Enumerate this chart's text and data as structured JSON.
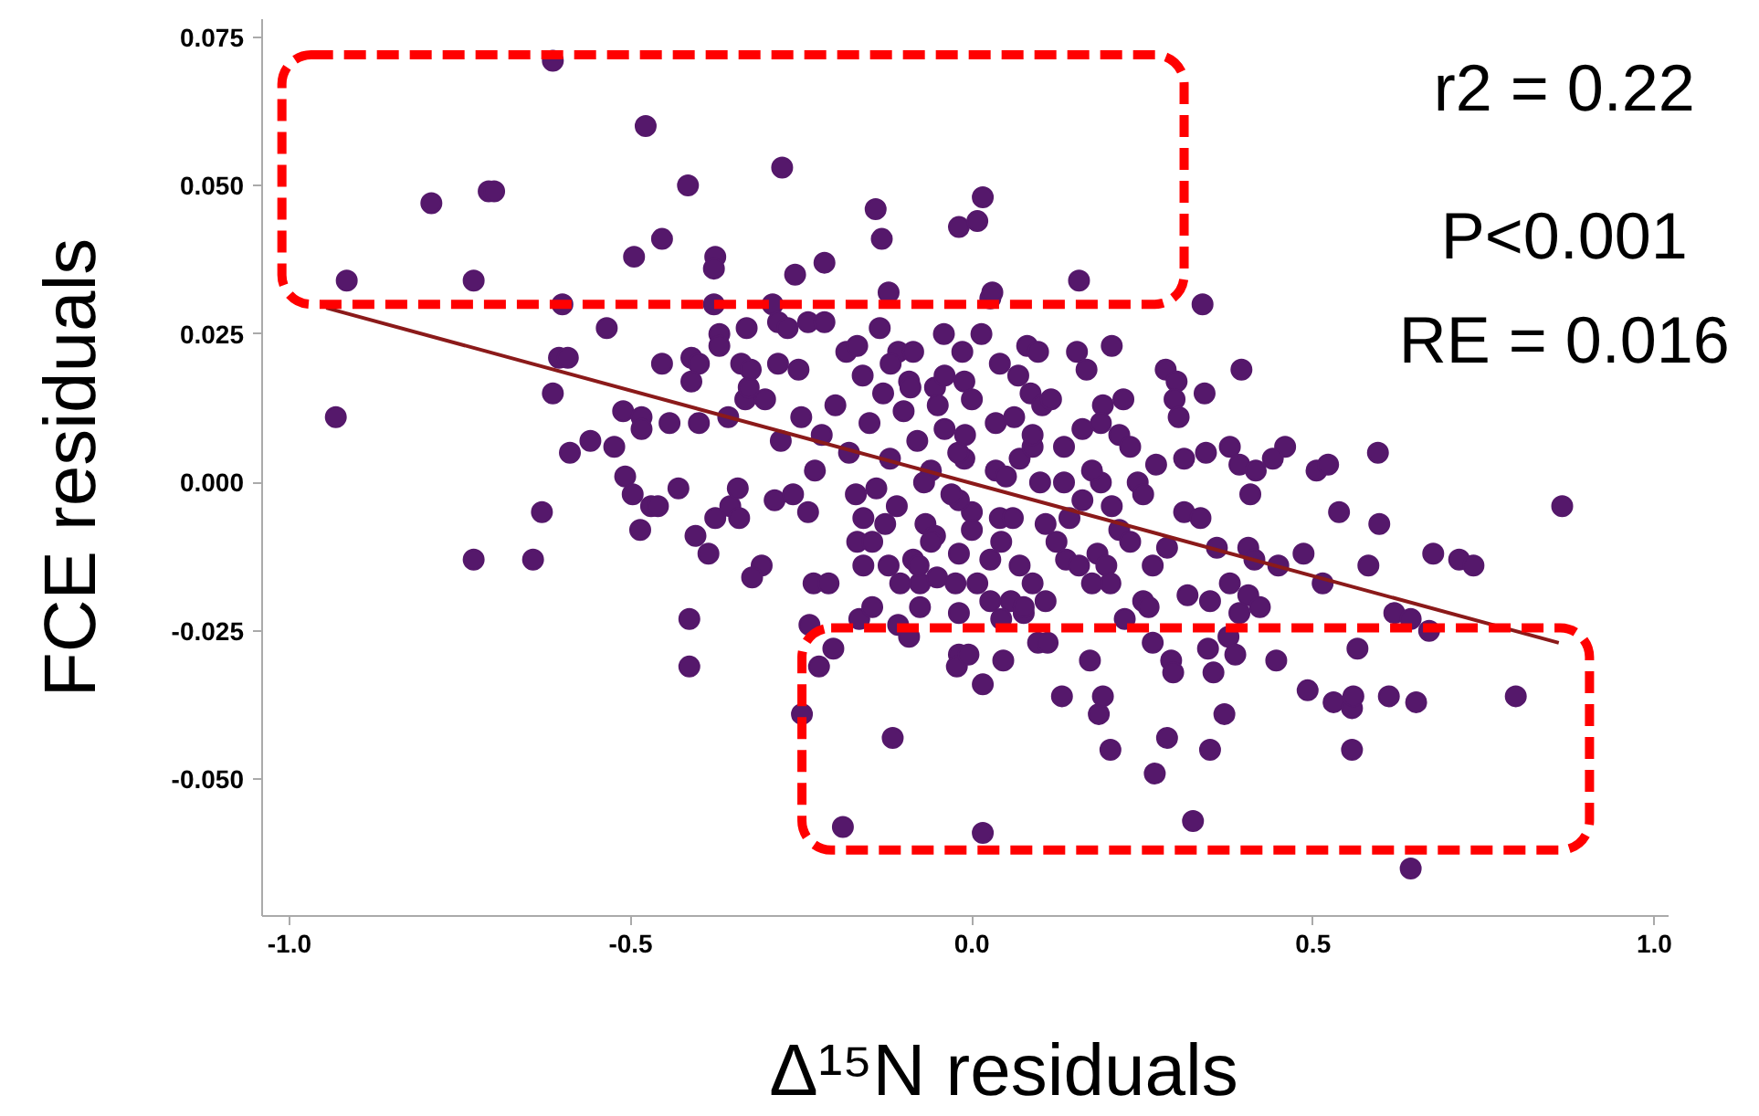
{
  "chart_data": {
    "type": "scatter",
    "xlabel": "Δ¹⁵N residuals",
    "ylabel": "FCE residuals",
    "annotations": [
      "r2 = 0.22",
      "P<0.001",
      "RE = 0.016"
    ],
    "xlim": [
      -1.04,
      1.02
    ],
    "ylim": [
      -0.073,
      0.078
    ],
    "xticks": [
      {
        "value": -1.0,
        "label": "-1.0"
      },
      {
        "value": -0.5,
        "label": "-0.5"
      },
      {
        "value": 0.0,
        "label": "0.0"
      },
      {
        "value": 0.5,
        "label": "0.5"
      },
      {
        "value": 1.0,
        "label": "1.0"
      }
    ],
    "yticks": [
      {
        "value": -0.05,
        "label": "-0.050"
      },
      {
        "value": -0.025,
        "label": "-0.025"
      },
      {
        "value": 0.0,
        "label": "0.000"
      },
      {
        "value": 0.025,
        "label": "0.025"
      },
      {
        "value": 0.05,
        "label": "0.050"
      },
      {
        "value": 0.075,
        "label": "0.075"
      }
    ],
    "grid": false,
    "series": [
      {
        "type": "scatter",
        "marker": "circle",
        "color": "#55186b",
        "x": [
          -0.614,
          -0.478,
          -0.792,
          -0.708,
          -0.7,
          -0.416,
          -0.278,
          -0.141,
          0.016,
          -0.019,
          0.008,
          -0.132,
          -0.454,
          -0.495,
          -0.376,
          -0.378,
          -0.259,
          -0.216,
          -0.916,
          -0.73,
          -0.6,
          -0.378,
          -0.122,
          0.027,
          -0.535,
          -0.33,
          -0.37,
          -0.37,
          -0.135,
          -0.292,
          -0.605,
          -0.592,
          -0.454,
          -0.411,
          -0.4,
          -0.411,
          -0.614,
          -0.511,
          -0.484,
          -0.484,
          -0.443,
          -0.4,
          -0.357,
          -0.932,
          -0.559,
          -0.589,
          -0.524,
          -0.303,
          -0.332,
          -0.327,
          -0.338,
          -0.324,
          -0.284,
          -0.254,
          -0.284,
          -0.27,
          -0.24,
          -0.216,
          -0.184,
          -0.168,
          -0.108,
          -0.086,
          -0.041,
          -0.014,
          0.014,
          -0.119,
          -0.092,
          -0.054,
          -0.011,
          0.041,
          0.081,
          -0.508,
          -0.497,
          -0.43,
          -0.47,
          -0.46,
          -0.63,
          -0.486,
          -0.405,
          -0.376,
          -0.386,
          -0.354,
          -0.341,
          -0.343,
          -0.289,
          -0.262,
          -0.24,
          -0.73,
          -0.643,
          -0.308,
          -0.322,
          -0.232,
          -0.21,
          -0.414,
          -0.414,
          -0.238,
          -0.203,
          -0.224,
          -0.249,
          -0.116,
          -0.189,
          0.016,
          -0.168,
          -0.159,
          -0.146,
          -0.122,
          -0.159,
          -0.127,
          -0.105,
          -0.076,
          -0.051,
          -0.024,
          0.008,
          -0.165,
          -0.146,
          -0.108,
          -0.092,
          -0.076,
          -0.019,
          -0.019,
          -0.022,
          -0.005,
          0.016,
          0.046,
          -0.086,
          -0.078,
          -0.019,
          0.027,
          0.043,
          -0.068,
          -0.054,
          0.0,
          0.041,
          0.057,
          0.076,
          0.157,
          0.338,
          0.205,
          0.154,
          0.168,
          0.284,
          0.395,
          0.3,
          0.297,
          0.303,
          0.341,
          0.222,
          0.192,
          0.086,
          0.103,
          0.116,
          0.068,
          0.097,
          0.03,
          0.595,
          0.459,
          0.441,
          0.378,
          0.392,
          0.343,
          0.311,
          0.505,
          0.522,
          0.416,
          0.408,
          0.538,
          0.597,
          0.865,
          0.486,
          0.581,
          0.676,
          0.714,
          0.735,
          0.514,
          0.619,
          0.643,
          0.565,
          0.27,
          0.243,
          0.251,
          0.359,
          0.311,
          0.335,
          0.286,
          0.265,
          0.405,
          0.414,
          0.449,
          0.378,
          0.405,
          0.422,
          0.392,
          0.316,
          0.349,
          0.251,
          0.259,
          0.224,
          0.216,
          0.232,
          0.184,
          0.197,
          0.203,
          0.124,
          0.138,
          0.157,
          0.176,
          0.07,
          0.089,
          0.108,
          0.076,
          0.027,
          0.043,
          0.162,
          0.189,
          0.205,
          0.176,
          0.135,
          0.143,
          0.108,
          0.07,
          0.089,
          0.035,
          0.162,
          0.189,
          0.216,
          0.232,
          0.135,
          0.035,
          0.062,
          0.089,
          0.0,
          -0.011,
          -0.019,
          0.0,
          0.643,
          0.797,
          0.611,
          0.651,
          0.492,
          0.53,
          0.557,
          0.559,
          0.557,
          0.446,
          0.324,
          0.268,
          0.286,
          0.349,
          0.37,
          0.203,
          0.186,
          0.192,
          0.132,
          0.292,
          0.295,
          0.354,
          0.346,
          0.376,
          0.386,
          0.265,
          0.173,
          0.67,
          0.097,
          0.111,
          -0.22,
          -0.18,
          -0.15,
          -0.12,
          -0.1,
          -0.08,
          -0.06,
          -0.04,
          -0.02,
          -0.13,
          -0.09,
          -0.05,
          -0.2,
          -0.25,
          -0.17,
          -0.14,
          -0.11,
          -0.07,
          -0.03,
          -0.01,
          -0.23,
          -0.28,
          -0.06,
          0.05,
          0.06,
          -0.16,
          -0.04,
          0.1
        ],
        "values": [
          0.071,
          0.06,
          0.047,
          0.049,
          0.049,
          0.05,
          0.053,
          0.046,
          0.048,
          0.043,
          0.044,
          0.041,
          0.041,
          0.038,
          0.038,
          0.036,
          0.035,
          0.037,
          0.034,
          0.034,
          0.03,
          0.03,
          0.032,
          0.031,
          0.026,
          0.026,
          0.025,
          0.023,
          0.026,
          0.03,
          0.021,
          0.021,
          0.02,
          0.021,
          0.02,
          0.017,
          0.015,
          0.012,
          0.011,
          0.009,
          0.01,
          0.01,
          0.011,
          0.011,
          0.007,
          0.005,
          0.006,
          0.014,
          0.014,
          0.016,
          0.02,
          0.019,
          0.02,
          0.019,
          0.027,
          0.026,
          0.027,
          0.027,
          0.022,
          0.023,
          0.022,
          0.022,
          0.025,
          0.022,
          0.025,
          0.02,
          0.017,
          0.016,
          0.017,
          0.02,
          0.023,
          0.001,
          -0.002,
          -0.001,
          -0.004,
          -0.004,
          -0.005,
          -0.008,
          -0.009,
          -0.006,
          -0.012,
          -0.004,
          -0.006,
          -0.001,
          -0.003,
          -0.002,
          -0.005,
          -0.013,
          -0.013,
          -0.014,
          -0.016,
          -0.017,
          -0.017,
          -0.023,
          -0.031,
          -0.024,
          -0.028,
          -0.031,
          -0.039,
          -0.043,
          -0.058,
          -0.059,
          -0.01,
          -0.014,
          -0.01,
          -0.014,
          -0.006,
          -0.007,
          -0.017,
          -0.017,
          -0.016,
          -0.017,
          -0.017,
          -0.023,
          -0.021,
          -0.024,
          -0.026,
          -0.021,
          -0.022,
          -0.029,
          -0.031,
          -0.029,
          -0.034,
          -0.03,
          -0.013,
          -0.014,
          -0.012,
          -0.013,
          -0.01,
          -0.007,
          -0.009,
          -0.005,
          -0.006,
          -0.02,
          -0.022,
          0.034,
          0.03,
          0.023,
          0.022,
          0.019,
          0.019,
          0.019,
          0.017,
          0.014,
          0.011,
          0.015,
          0.014,
          0.013,
          0.015,
          0.013,
          0.014,
          0.018,
          0.022,
          0.032,
          0.005,
          0.006,
          0.004,
          0.006,
          0.003,
          0.005,
          0.004,
          0.002,
          0.003,
          0.002,
          -0.002,
          -0.005,
          -0.007,
          -0.004,
          -0.012,
          -0.014,
          -0.012,
          -0.013,
          -0.014,
          -0.017,
          -0.022,
          -0.023,
          -0.028,
          0.003,
          0.0,
          -0.002,
          -0.011,
          -0.005,
          -0.006,
          -0.011,
          -0.014,
          -0.011,
          -0.013,
          -0.014,
          -0.017,
          -0.019,
          -0.021,
          -0.022,
          -0.019,
          -0.02,
          -0.02,
          -0.021,
          -0.023,
          -0.008,
          -0.01,
          -0.012,
          -0.014,
          -0.017,
          -0.01,
          -0.013,
          -0.014,
          -0.017,
          -0.014,
          -0.017,
          -0.02,
          -0.021,
          -0.02,
          -0.023,
          -0.003,
          0.0,
          -0.004,
          0.002,
          0.0,
          -0.006,
          -0.007,
          0.004,
          0.006,
          0.002,
          0.009,
          0.01,
          0.008,
          0.006,
          0.006,
          0.01,
          0.011,
          0.008,
          0.014,
          0.004,
          -0.003,
          -0.008,
          -0.065,
          -0.036,
          -0.036,
          -0.037,
          -0.035,
          -0.037,
          -0.038,
          -0.036,
          -0.045,
          -0.03,
          -0.057,
          -0.049,
          -0.043,
          -0.045,
          -0.039,
          -0.045,
          -0.039,
          -0.036,
          -0.036,
          -0.03,
          -0.032,
          -0.032,
          -0.028,
          -0.026,
          -0.029,
          -0.027,
          -0.03,
          -0.025,
          -0.027,
          -0.027,
          0.008,
          0.005,
          0.01,
          0.004,
          0.012,
          0.007,
          0.002,
          0.009,
          0.005,
          0.015,
          0.016,
          0.013,
          0.013,
          0.011,
          -0.002,
          -0.001,
          -0.004,
          0.0,
          -0.002,
          0.008,
          0.002,
          0.007,
          -0.01,
          0.001,
          -0.006,
          0.018,
          0.018,
          0.0
        ]
      },
      {
        "type": "line",
        "color": "#8b1a1a",
        "x": [
          -0.946,
          0.86
        ],
        "values": [
          0.0294,
          -0.027
        ]
      }
    ]
  }
}
